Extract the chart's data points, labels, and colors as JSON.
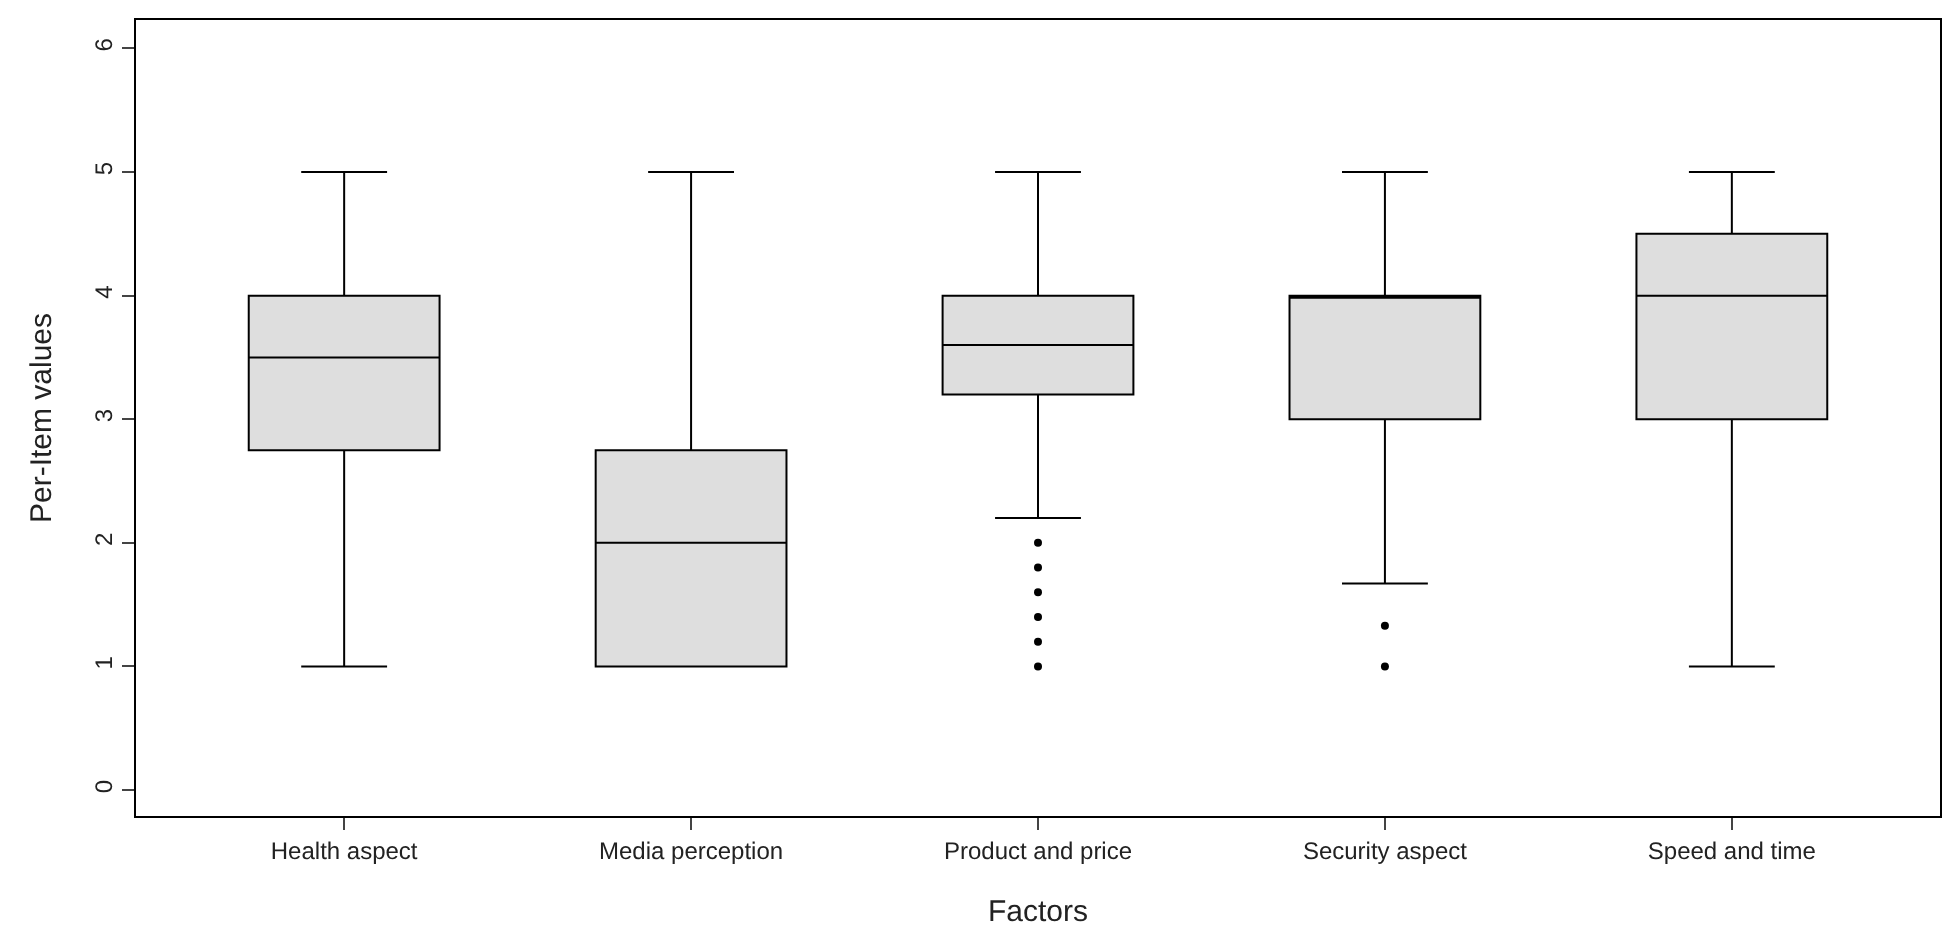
{
  "chart_data": {
    "type": "box",
    "xlabel": "Factors",
    "ylabel": "Per-Item values",
    "categories": [
      "Health aspect",
      "Media perception",
      "Product and price",
      "Security aspect",
      "Speed and time"
    ],
    "boxes": [
      {
        "low": 1,
        "q1": 2.75,
        "median": 3.5,
        "q3": 4,
        "high": 5
      },
      {
        "low": 1,
        "q1": 1,
        "median": 2,
        "q3": 2.75,
        "high": 5
      },
      {
        "low": 2.2,
        "q1": 3.2,
        "median": 3.6,
        "q3": 4,
        "high": 5,
        "outliers": [
          2,
          1.8,
          1.6,
          1.4,
          1.2,
          1
        ]
      },
      {
        "low": 1.67,
        "q1": 3,
        "median": 4,
        "q3": 4,
        "high": 5,
        "outliers": [
          1.33,
          1
        ]
      },
      {
        "low": 1,
        "q1": 3,
        "median": 4,
        "q3": 4.5,
        "high": 5
      }
    ],
    "color": "#dedede",
    "ylim": [
      -0.21,
      6.23
    ],
    "yticks": [
      0,
      1,
      2,
      3,
      4,
      5,
      6
    ]
  }
}
